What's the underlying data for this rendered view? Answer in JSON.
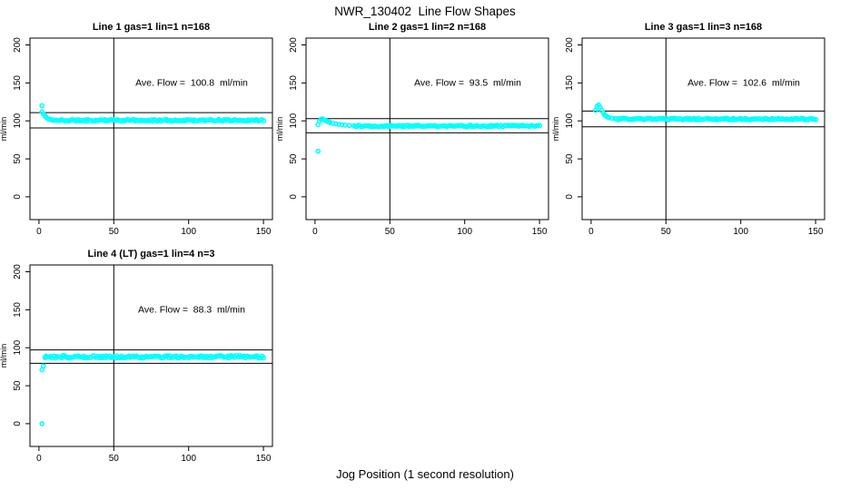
{
  "figure": {
    "title": "NWR_130402  Line Flow Shapes",
    "xlabel": "Jog Position (1 second resolution)",
    "ylabel": "ml/min",
    "background": "#ffffff",
    "axis_color": "#000000",
    "ref_line_color": "#000000",
    "point_color": "#00ffff"
  },
  "chart_data": [
    {
      "type": "scatter",
      "title": "Line 1 gas=1 lin=1 n=168",
      "annotation": "Ave. Flow =  100.8  ml/min",
      "ave_flow_ml_min": 100.8,
      "n": 168,
      "xlim": [
        -6,
        156
      ],
      "ylim": [
        -30,
        209
      ],
      "x_ticks": [
        0,
        50,
        100,
        150
      ],
      "y_ticks": [
        0,
        50,
        100,
        150,
        200
      ],
      "vline_x": 50,
      "hlines": [
        110.9,
        90.7
      ],
      "outlier_points": [
        [
          2,
          120
        ]
      ],
      "transient_points": [
        [
          2,
          112
        ],
        [
          3,
          109
        ],
        [
          4,
          106.5
        ],
        [
          5,
          104.5
        ],
        [
          6,
          103
        ],
        [
          7,
          102.2
        ],
        [
          8,
          101.6
        ],
        [
          9,
          101.2
        ]
      ],
      "steady_band": {
        "x_start": 10,
        "x_end": 150,
        "level": 100.7,
        "jitter": 1.2
      },
      "seed": 11
    },
    {
      "type": "scatter",
      "title": "Line 2 gas=1 lin=2 n=168",
      "annotation": "Ave. Flow =  93.5  ml/min",
      "ave_flow_ml_min": 93.5,
      "n": 168,
      "xlim": [
        -6,
        156
      ],
      "ylim": [
        -30,
        209
      ],
      "x_ticks": [
        0,
        50,
        100,
        150
      ],
      "y_ticks": [
        0,
        50,
        100,
        150,
        200
      ],
      "vline_x": 50,
      "hlines": [
        102.9,
        84.2
      ],
      "outlier_points": [
        [
          2,
          60
        ]
      ],
      "transient_points": [
        [
          2,
          95
        ],
        [
          3,
          99.5
        ],
        [
          4,
          102
        ],
        [
          5,
          102.5
        ],
        [
          6,
          101.5
        ],
        [
          7,
          100.5
        ],
        [
          8,
          99.5
        ],
        [
          9,
          98.6
        ],
        [
          10,
          97.9
        ],
        [
          12,
          96.9
        ],
        [
          14,
          96.1
        ],
        [
          16,
          95.4
        ],
        [
          18,
          94.8
        ],
        [
          20,
          94.4
        ],
        [
          23,
          94
        ],
        [
          26,
          93.7
        ]
      ],
      "steady_band": {
        "x_start": 27,
        "x_end": 150,
        "level": 93.3,
        "jitter": 1.1
      },
      "seed": 22
    },
    {
      "type": "scatter",
      "title": "Line 3 gas=1 lin=3 n=168",
      "annotation": "Ave. Flow =  102.6  ml/min",
      "ave_flow_ml_min": 102.6,
      "n": 168,
      "xlim": [
        -6,
        156
      ],
      "ylim": [
        -30,
        209
      ],
      "x_ticks": [
        0,
        50,
        100,
        150
      ],
      "y_ticks": [
        0,
        50,
        100,
        150,
        200
      ],
      "vline_x": 50,
      "hlines": [
        112.9,
        92.3
      ],
      "outlier_points": [],
      "transient_points": [
        [
          3,
          114
        ],
        [
          4,
          119
        ],
        [
          5,
          121
        ],
        [
          6,
          118
        ],
        [
          7,
          114
        ],
        [
          8,
          110.5
        ],
        [
          9,
          108
        ],
        [
          10,
          106.3
        ],
        [
          11,
          105
        ],
        [
          12,
          104.2
        ],
        [
          14,
          103.4
        ],
        [
          16,
          103
        ]
      ],
      "steady_band": {
        "x_start": 17,
        "x_end": 150,
        "level": 102.4,
        "jitter": 1.1
      },
      "seed": 33
    },
    {
      "type": "scatter",
      "title": "Line 4 (LT) gas=1 lin=4 n=3",
      "annotation": "Ave. Flow =  88.3  ml/min",
      "ave_flow_ml_min": 88.3,
      "n": 3,
      "xlim": [
        -6,
        156
      ],
      "ylim": [
        -30,
        209
      ],
      "x_ticks": [
        0,
        50,
        100,
        150
      ],
      "y_ticks": [
        0,
        50,
        100,
        150,
        200
      ],
      "vline_x": 50,
      "hlines": [
        97.1,
        79.5
      ],
      "outlier_points": [
        [
          2,
          0
        ],
        [
          2,
          71
        ],
        [
          3,
          76
        ]
      ],
      "transient_points": [
        [
          4,
          87
        ],
        [
          5,
          87.5
        ]
      ],
      "steady_band": {
        "x_start": 4,
        "x_end": 150,
        "level": 88,
        "jitter": 1.6
      },
      "seed": 44
    }
  ]
}
